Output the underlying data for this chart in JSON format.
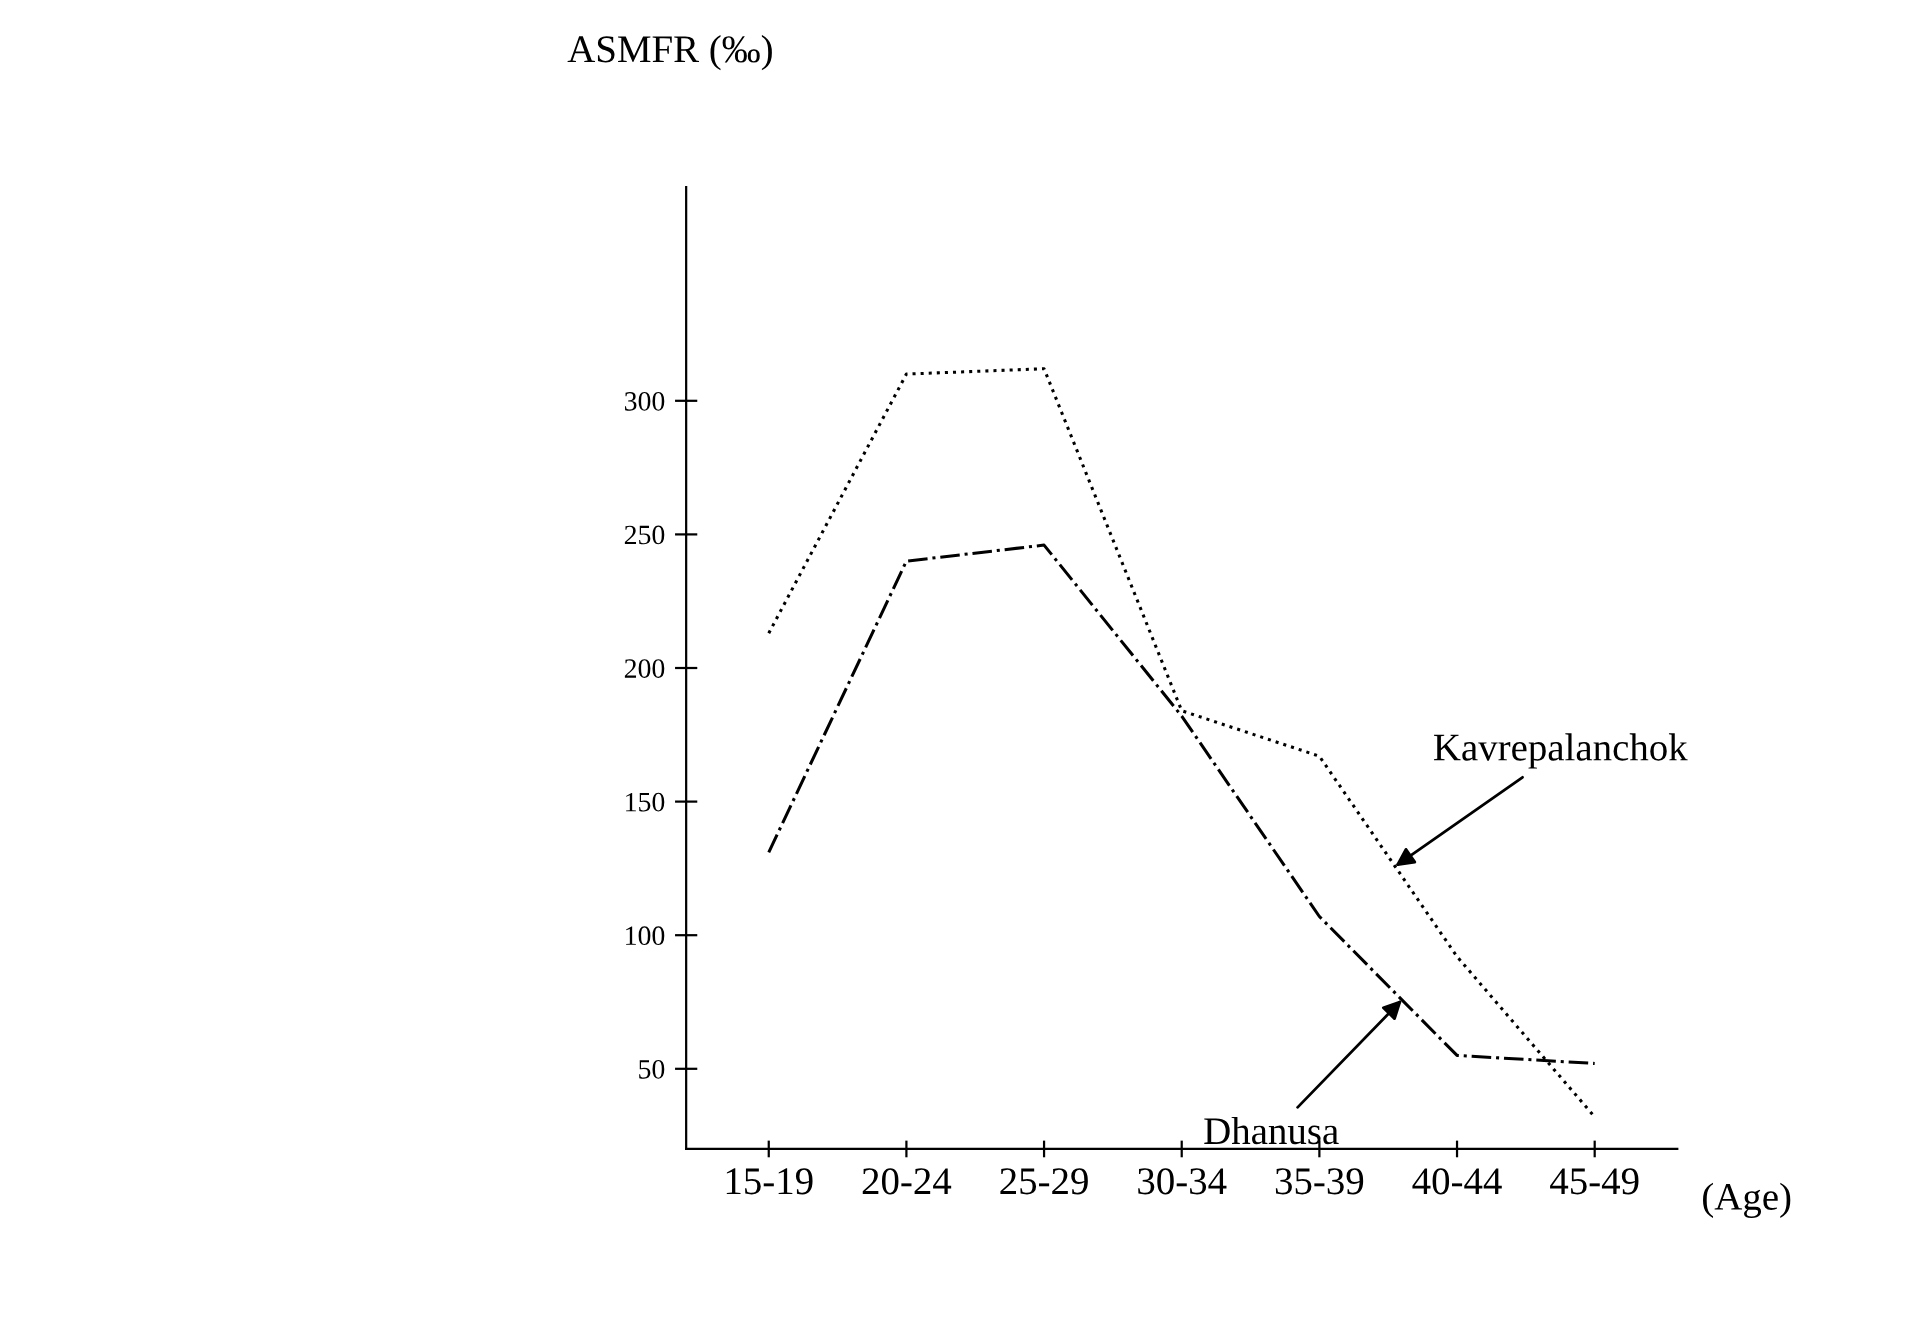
{
  "chart_data": {
    "type": "line",
    "title": "ASMFR (‰)",
    "xlabel": "(Age)",
    "categories": [
      "15-19",
      "20-24",
      "25-29",
      "30-34",
      "35-39",
      "40-44",
      "45-49"
    ],
    "series": [
      {
        "name": "Kavrepalanchok",
        "color": "#000000",
        "line_style": "dotted",
        "values": [
          213,
          310,
          312,
          184,
          167,
          92,
          32
        ]
      },
      {
        "name": "Dhanusa",
        "color": "#000000",
        "line_style": "dashdot",
        "values": [
          131,
          240,
          246,
          182,
          107,
          55,
          52
        ]
      }
    ],
    "ylim": [
      20,
      380
    ],
    "yticks": [
      50,
      100,
      150,
      200,
      250,
      300
    ],
    "grid": false,
    "legend": false,
    "marker": "none"
  }
}
